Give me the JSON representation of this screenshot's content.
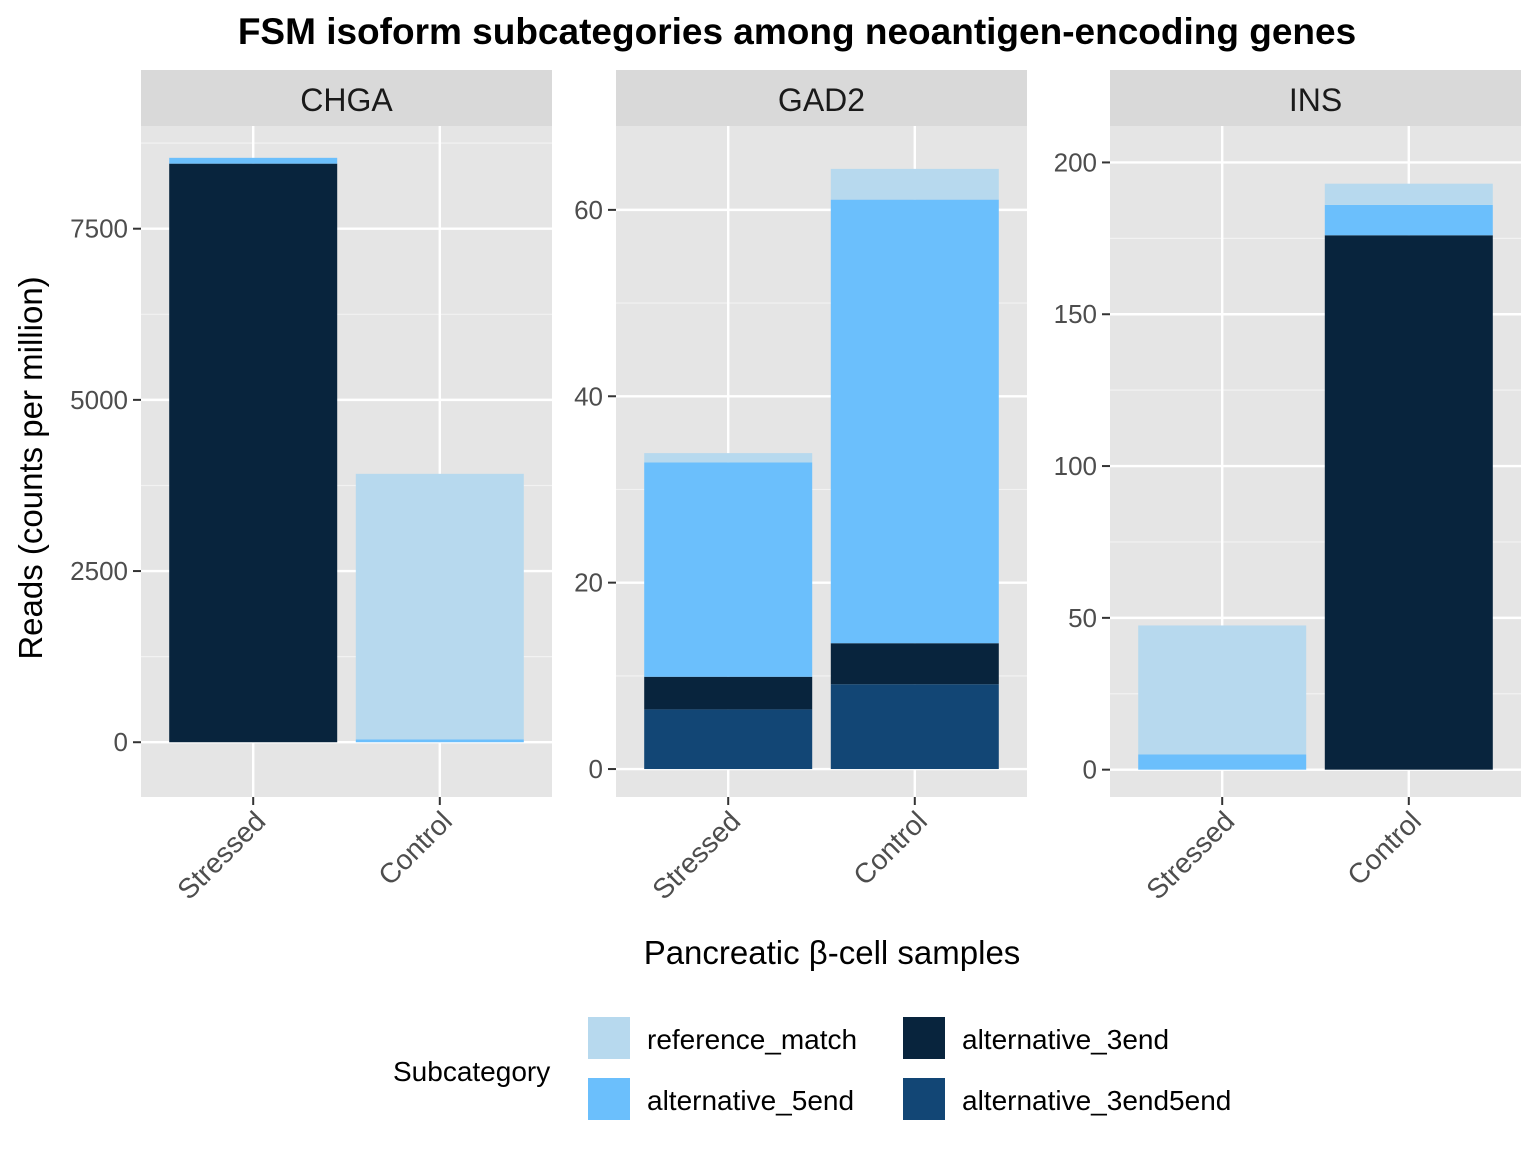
{
  "chart_data": {
    "type": "bar",
    "stacked": true,
    "title": "FSM isoform subcategories among neoantigen-encoding genes",
    "xlabel": "Pancreatic β-cell samples",
    "ylabel": "Reads (counts per million)",
    "categories": [
      "Stressed",
      "Control"
    ],
    "stack_order": [
      "alternative_3end5end",
      "alternative_3end",
      "alternative_5end",
      "reference_match"
    ],
    "legend": {
      "title": "Subcategory",
      "position": "bottom",
      "items": [
        {
          "name": "reference_match",
          "color": "#b7d9ee"
        },
        {
          "name": "alternative_5end",
          "color": "#6bbffc"
        },
        {
          "name": "alternative_3end",
          "color": "#08243d"
        },
        {
          "name": "alternative_3end5end",
          "color": "#124675"
        }
      ]
    },
    "grid": true,
    "panels": [
      {
        "name": "CHGA",
        "ylim": [
          -800,
          9000
        ],
        "yticks": [
          0,
          2500,
          5000,
          7500
        ],
        "ytick_labels": [
          "0",
          "2500",
          "5000",
          "7500"
        ],
        "minor_ticks": [
          1250,
          3750,
          6250,
          8750
        ],
        "series": [
          {
            "name": "alternative_3end5end",
            "values": [
              0,
              0
            ]
          },
          {
            "name": "alternative_3end",
            "values": [
              8450,
              0
            ]
          },
          {
            "name": "alternative_5end",
            "values": [
              85,
              40
            ]
          },
          {
            "name": "reference_match",
            "values": [
              0,
              3880
            ]
          }
        ]
      },
      {
        "name": "GAD2",
        "ylim": [
          -3,
          69
        ],
        "yticks": [
          0,
          20,
          40,
          60
        ],
        "ytick_labels": [
          "0",
          "20",
          "40",
          "60"
        ],
        "minor_ticks": [
          10,
          30,
          50
        ],
        "series": [
          {
            "name": "alternative_3end5end",
            "values": [
              6.4,
              9.1
            ]
          },
          {
            "name": "alternative_3end",
            "values": [
              3.5,
              4.4
            ]
          },
          {
            "name": "alternative_5end",
            "values": [
              23.0,
              47.6
            ]
          },
          {
            "name": "reference_match",
            "values": [
              1.0,
              3.3
            ]
          }
        ]
      },
      {
        "name": "INS",
        "ylim": [
          -9,
          212
        ],
        "yticks": [
          0,
          50,
          100,
          150,
          200
        ],
        "ytick_labels": [
          "0",
          "50",
          "100",
          "150",
          "200"
        ],
        "minor_ticks": [
          25,
          75,
          125,
          175
        ],
        "series": [
          {
            "name": "alternative_3end5end",
            "values": [
              0,
              0
            ]
          },
          {
            "name": "alternative_3end",
            "values": [
              0,
              176
            ]
          },
          {
            "name": "alternative_5end",
            "values": [
              5,
              10
            ]
          },
          {
            "name": "reference_match",
            "values": [
              42.5,
              7
            ]
          }
        ]
      }
    ]
  }
}
